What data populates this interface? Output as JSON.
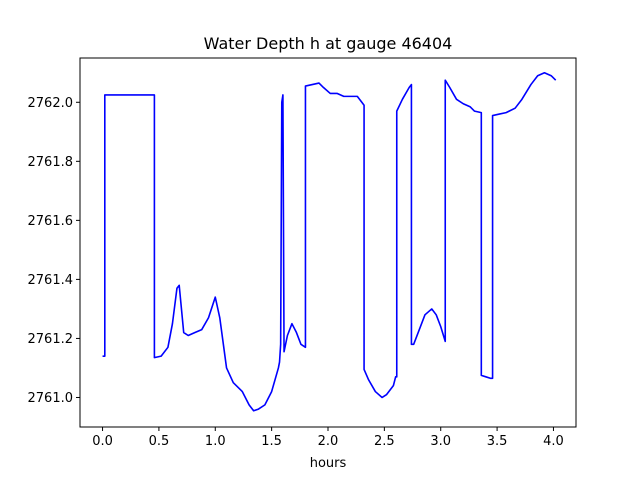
{
  "chart_data": {
    "type": "line",
    "title": "Water Depth h at gauge 46404",
    "xlabel": "hours",
    "ylabel": "",
    "xlim": [
      -0.2,
      4.2
    ],
    "ylim": [
      2760.9,
      2762.15
    ],
    "xticks": [
      0.0,
      0.5,
      1.0,
      1.5,
      2.0,
      2.5,
      3.0,
      3.5,
      4.0
    ],
    "xtick_labels": [
      "0.0",
      "0.5",
      "1.0",
      "1.5",
      "2.0",
      "2.5",
      "3.0",
      "3.5",
      "4.0"
    ],
    "yticks": [
      2761.0,
      2761.2,
      2761.4,
      2761.6,
      2761.8,
      2762.0
    ],
    "ytick_labels": [
      "2761.0",
      "2761.2",
      "2761.4",
      "2761.6",
      "2761.8",
      "2762.0"
    ],
    "grid": false,
    "line_color": "#0000ff",
    "series": [
      {
        "x": [
          0.0,
          0.02,
          0.02,
          0.22,
          0.46,
          0.46,
          0.52,
          0.58,
          0.62,
          0.66,
          0.68,
          0.72,
          0.76,
          0.82,
          0.88,
          0.94,
          1.0,
          1.04,
          1.1,
          1.16,
          1.24,
          1.3,
          1.34,
          1.38,
          1.44,
          1.5,
          1.56,
          1.57,
          1.58,
          1.59,
          1.6,
          1.61,
          1.64,
          1.68,
          1.72,
          1.76,
          1.8,
          1.8,
          1.86,
          1.92,
          1.96,
          2.02,
          2.08,
          2.14,
          2.2,
          2.26,
          2.3,
          2.32,
          2.32,
          2.36,
          2.42,
          2.48,
          2.52,
          2.58,
          2.6,
          2.61,
          2.61,
          2.66,
          2.72,
          2.74,
          2.74,
          2.76,
          2.8,
          2.86,
          2.92,
          2.96,
          3.0,
          3.04,
          3.04,
          3.08,
          3.14,
          3.2,
          3.26,
          3.3,
          3.36,
          3.36,
          3.4,
          3.44,
          3.46,
          3.46,
          3.52,
          3.58,
          3.66,
          3.72,
          3.8,
          3.86,
          3.92,
          3.98,
          4.02
        ],
        "y": [
          2761.14,
          2761.14,
          2762.025,
          2762.025,
          2762.025,
          2761.135,
          2761.14,
          2761.17,
          2761.25,
          2761.37,
          2761.38,
          2761.22,
          2761.21,
          2761.22,
          2761.23,
          2761.27,
          2761.34,
          2761.27,
          2761.1,
          2761.05,
          2761.02,
          2760.975,
          2760.955,
          2760.96,
          2760.975,
          2761.02,
          2761.1,
          2761.12,
          2761.18,
          2762.0,
          2762.025,
          2761.155,
          2761.21,
          2761.25,
          2761.22,
          2761.18,
          2761.17,
          2762.055,
          2762.06,
          2762.065,
          2762.05,
          2762.03,
          2762.03,
          2762.02,
          2762.02,
          2762.02,
          2762.0,
          2761.99,
          2761.095,
          2761.06,
          2761.02,
          2761.0,
          2761.01,
          2761.04,
          2761.07,
          2761.07,
          2761.97,
          2762.01,
          2762.05,
          2762.06,
          2761.18,
          2761.18,
          2761.22,
          2761.28,
          2761.3,
          2761.28,
          2761.24,
          2761.19,
          2762.075,
          2762.05,
          2762.01,
          2761.995,
          2761.985,
          2761.97,
          2761.965,
          2761.075,
          2761.07,
          2761.065,
          2761.065,
          2761.955,
          2761.96,
          2761.965,
          2761.98,
          2762.01,
          2762.06,
          2762.09,
          2762.1,
          2762.09,
          2762.075
        ]
      }
    ]
  }
}
